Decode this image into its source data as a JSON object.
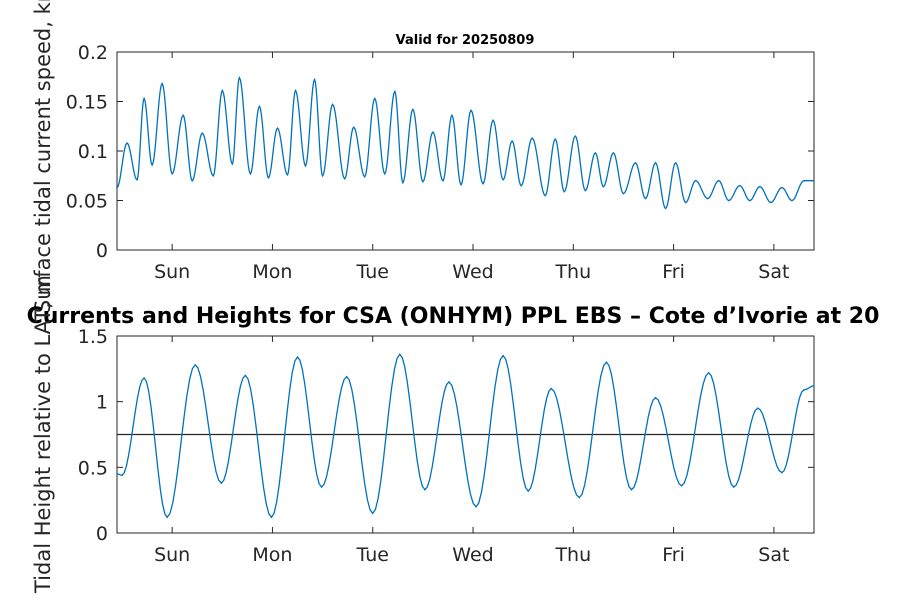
{
  "chart_data": [
    {
      "type": "line",
      "title": "Valid for 20250809",
      "ylabel": "Surface tidal current speed, kn",
      "xlim": [
        0.45,
        7.4
      ],
      "ylim": [
        0,
        0.2
      ],
      "yticks": [
        0,
        0.05,
        0.1,
        0.15,
        0.2
      ],
      "ytick_labels": [
        "0",
        "0.05",
        "0.1",
        "0.15",
        "0.2"
      ],
      "xticks": [
        1,
        2,
        3,
        4,
        5,
        6,
        7
      ],
      "xtick_labels": [
        "Sun",
        "Mon",
        "Tue",
        "Wed",
        "Thu",
        "Fri",
        "Sat"
      ],
      "series": [
        {
          "color": "#0072bd",
          "x": [
            0.45,
            0.55,
            0.65,
            0.72,
            0.8,
            0.9,
            1.0,
            1.11,
            1.2,
            1.3,
            1.41,
            1.5,
            1.6,
            1.67,
            1.78,
            1.87,
            1.96,
            2.05,
            2.15,
            2.23,
            2.33,
            2.42,
            2.5,
            2.6,
            2.72,
            2.81,
            2.92,
            3.02,
            3.12,
            3.22,
            3.3,
            3.4,
            3.5,
            3.6,
            3.7,
            3.79,
            3.88,
            3.98,
            4.1,
            4.2,
            4.3,
            4.39,
            4.48,
            4.59,
            4.72,
            4.82,
            4.91,
            5.02,
            5.12,
            5.22,
            5.3,
            5.4,
            5.5,
            5.62,
            5.72,
            5.82,
            5.92,
            6.02,
            6.12,
            6.22,
            6.34,
            6.45,
            6.55,
            6.66,
            6.76,
            6.86,
            6.97,
            7.08,
            7.18,
            7.3,
            7.4
          ],
          "y": [
            0.063,
            0.108,
            0.071,
            0.153,
            0.086,
            0.168,
            0.077,
            0.136,
            0.07,
            0.118,
            0.075,
            0.161,
            0.087,
            0.174,
            0.077,
            0.145,
            0.073,
            0.123,
            0.076,
            0.161,
            0.085,
            0.172,
            0.075,
            0.147,
            0.072,
            0.124,
            0.074,
            0.153,
            0.077,
            0.16,
            0.068,
            0.142,
            0.069,
            0.119,
            0.07,
            0.136,
            0.066,
            0.141,
            0.067,
            0.131,
            0.071,
            0.11,
            0.065,
            0.113,
            0.055,
            0.112,
            0.059,
            0.115,
            0.06,
            0.098,
            0.064,
            0.098,
            0.057,
            0.088,
            0.052,
            0.088,
            0.042,
            0.088,
            0.048,
            0.07,
            0.052,
            0.07,
            0.05,
            0.065,
            0.05,
            0.064,
            0.048,
            0.063,
            0.05,
            0.07,
            0.07
          ]
        }
      ]
    },
    {
      "type": "line",
      "title": "Currents and Heights for CSA (ONHYM) PPL EBS  – Cote d’Ivorie at 20",
      "ylabel": "Tidal Height relative to LAT, m",
      "xlim": [
        0.45,
        7.4
      ],
      "ylim": [
        0,
        1.5
      ],
      "yticks": [
        0,
        0.5,
        1,
        1.5
      ],
      "ytick_labels": [
        "0",
        "0.5",
        "1",
        "1.5"
      ],
      "xticks": [
        1,
        2,
        3,
        4,
        5,
        6,
        7
      ],
      "xtick_labels": [
        "Sun",
        "Mon",
        "Tue",
        "Wed",
        "Thu",
        "Fri",
        "Sat"
      ],
      "reference_line": 0.75,
      "series": [
        {
          "color": "#0072bd",
          "x": [
            0.45,
            0.5,
            0.72,
            0.95,
            1.23,
            1.49,
            1.73,
            1.99,
            2.25,
            2.49,
            2.74,
            3.0,
            3.27,
            3.52,
            3.76,
            4.03,
            4.3,
            4.55,
            4.78,
            5.06,
            5.33,
            5.58,
            5.82,
            6.08,
            6.35,
            6.6,
            6.84,
            7.08,
            7.3,
            7.4
          ],
          "y": [
            0.45,
            0.44,
            1.18,
            0.12,
            1.28,
            0.38,
            1.2,
            0.12,
            1.34,
            0.35,
            1.19,
            0.15,
            1.36,
            0.33,
            1.15,
            0.2,
            1.35,
            0.32,
            1.1,
            0.27,
            1.3,
            0.33,
            1.03,
            0.36,
            1.22,
            0.35,
            0.95,
            0.46,
            1.09,
            1.12
          ]
        }
      ]
    }
  ]
}
